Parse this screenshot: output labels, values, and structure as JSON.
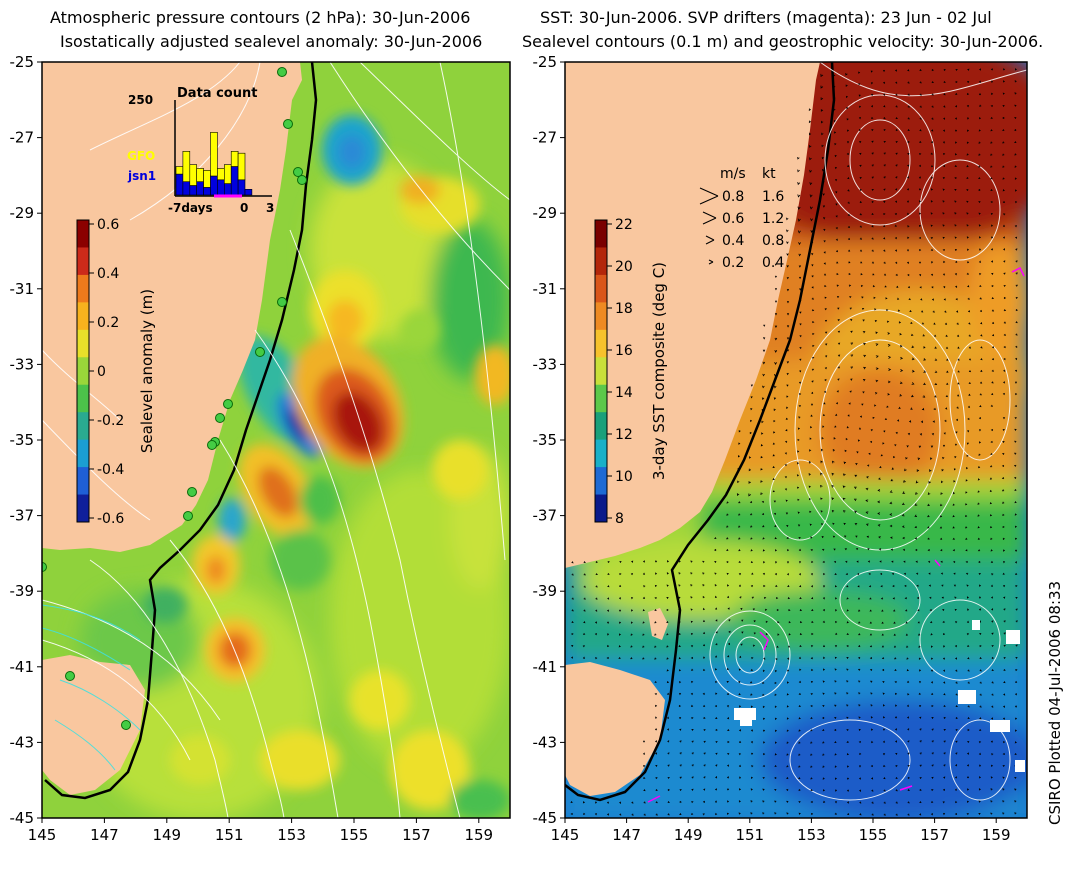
{
  "left_panel": {
    "title_line1": "Atmospheric pressure contours (2 hPa): 30-Jun-2006",
    "title_line2": "Isostatically adjusted sealevel anomaly: 30-Jun-2006",
    "colorbar": {
      "label": "Sealevel anomaly (m)",
      "ticks": [
        "0.6",
        "0.4",
        "0.2",
        "0",
        "-0.2",
        "-0.4",
        "-0.6"
      ],
      "colors": [
        "#8b0000",
        "#cc2a1a",
        "#ee7a1c",
        "#f7b21e",
        "#e8e02a",
        "#9ad63a",
        "#4cc24a",
        "#2aaa90",
        "#1b9ed2",
        "#1f5fd6",
        "#0f1f9a"
      ]
    },
    "inset": {
      "title": "Data count",
      "ymax_label": "250",
      "legend": [
        {
          "name": "GFO",
          "color": "#ffff00"
        },
        {
          "name": "jsn1",
          "color": "#0000dd"
        }
      ],
      "xlabel_left": "-7days",
      "xlabel_zero": "0",
      "xlabel_right": "3",
      "gfo_counts": [
        0.08,
        0.32,
        0.22,
        0.14,
        0.18,
        0.46,
        0.12,
        0.2,
        0.16,
        0.28,
        0.0,
        0.0,
        0.0,
        0.0
      ],
      "jsn1_counts": [
        0.22,
        0.14,
        0.1,
        0.14,
        0.08,
        0.2,
        0.16,
        0.12,
        0.3,
        0.16,
        0.06,
        0.0,
        0.0,
        0.0
      ]
    },
    "xticks": [
      "145",
      "147",
      "149",
      "151",
      "153",
      "155",
      "157",
      "159"
    ],
    "yticks": [
      "-25",
      "-27",
      "-29",
      "-31",
      "-33",
      "-35",
      "-37",
      "-39",
      "-41",
      "-43",
      "-45"
    ]
  },
  "right_panel": {
    "title_line1": "SST: 30-Jun-2006. SVP drifters (magenta): 23 Jun - 02 Jul",
    "title_line2": "Sealevel contours (0.1 m) and geostrophic velocity: 30-Jun-2006.",
    "colorbar": {
      "label": "3-day SST composite (deg C)",
      "ticks": [
        "22",
        "20",
        "18",
        "16",
        "14",
        "12",
        "10",
        "8"
      ],
      "colors": [
        "#7a0000",
        "#b3260a",
        "#d9561a",
        "#ee8a22",
        "#f6c22c",
        "#c9e03a",
        "#5cc84a",
        "#1aa07a",
        "#1ab0c8",
        "#1e6ad4",
        "#0a1a8a"
      ]
    },
    "velocity_key": {
      "header_ms": "m/s",
      "header_kt": "kt",
      "rows": [
        {
          "ms": "0.8",
          "kt": "1.6"
        },
        {
          "ms": "0.6",
          "kt": "1.2"
        },
        {
          "ms": "0.4",
          "kt": "0.8"
        },
        {
          "ms": "0.2",
          "kt": "0.4"
        }
      ]
    },
    "xticks": [
      "145",
      "147",
      "149",
      "151",
      "153",
      "155",
      "157",
      "159"
    ],
    "yticks": [
      "-25",
      "-27",
      "-29",
      "-31",
      "-33",
      "-35",
      "-37",
      "-39",
      "-41",
      "-43",
      "-45"
    ]
  },
  "credit": "CSIRO Plotted 04-Jul-2006 08:33",
  "colors": {
    "land": "#f9c79f",
    "shelf_contour": "#000000",
    "pressure_contours": "#ffffff",
    "drifter_markers": "#44cc44",
    "drifter_tracks": "#ff00ff"
  }
}
